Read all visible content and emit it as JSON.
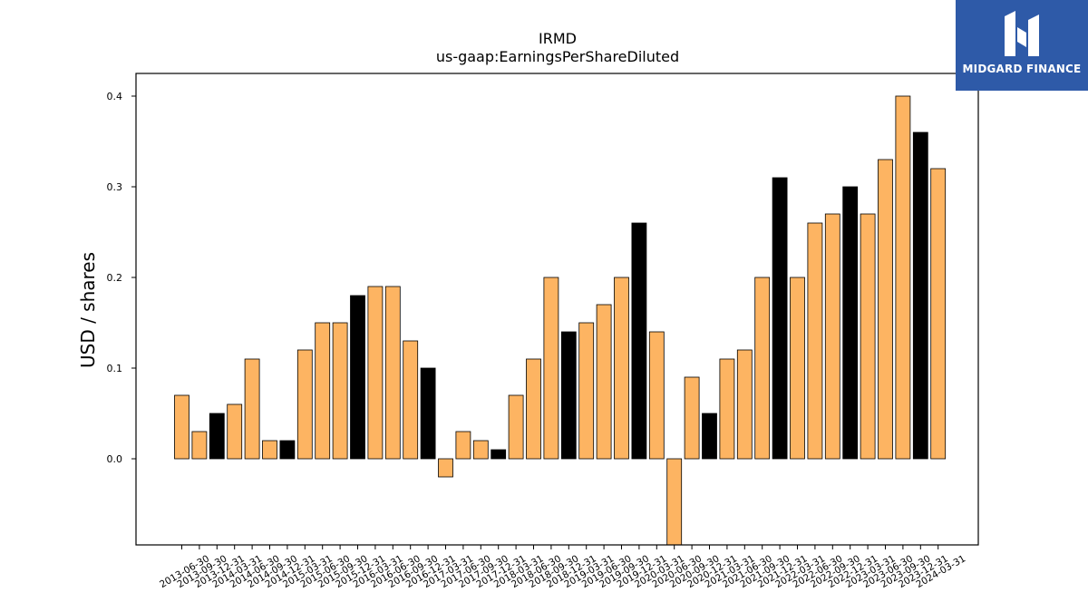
{
  "chart_data": {
    "type": "bar",
    "title": "IRMD",
    "subtitle": "us-gaap:EarningsPerShareDiluted",
    "ylabel": "USD / shares",
    "xlabel": "",
    "ylim": [
      -0.095,
      0.425
    ],
    "yticks": [
      0.0,
      0.1,
      0.2,
      0.3,
      0.4
    ],
    "ytick_labels": [
      "0.0",
      "0.1",
      "0.2",
      "0.3",
      "0.4"
    ],
    "grid": false,
    "categories": [
      "2013-06-30",
      "2013-09-30",
      "2013-12-31",
      "2014-03-31",
      "2014-06-30",
      "2014-09-30",
      "2014-12-31",
      "2015-03-31",
      "2015-06-30",
      "2015-09-30",
      "2015-12-31",
      "2016-03-31",
      "2016-06-30",
      "2016-09-30",
      "2016-12-31",
      "2017-03-31",
      "2017-06-30",
      "2017-09-30",
      "2017-12-31",
      "2018-03-31",
      "2018-06-30",
      "2018-09-30",
      "2018-12-31",
      "2019-03-31",
      "2019-06-30",
      "2019-09-30",
      "2019-12-31",
      "2020-03-31",
      "2020-06-30",
      "2020-09-30",
      "2020-12-31",
      "2021-03-31",
      "2021-06-30",
      "2021-09-30",
      "2021-12-31",
      "2022-03-31",
      "2022-06-30",
      "2022-09-30",
      "2022-12-31",
      "2023-03-31",
      "2023-06-30",
      "2023-09-30",
      "2023-12-31",
      "2024-03-31"
    ],
    "values": [
      0.07,
      0.03,
      0.05,
      0.06,
      0.11,
      0.02,
      0.02,
      0.12,
      0.15,
      0.15,
      0.18,
      0.19,
      0.19,
      0.13,
      0.1,
      -0.02,
      0.03,
      0.02,
      0.01,
      0.07,
      0.11,
      0.2,
      0.14,
      0.15,
      0.17,
      0.2,
      0.26,
      0.14,
      -0.11,
      0.09,
      0.05,
      0.11,
      0.12,
      0.2,
      0.31,
      0.2,
      0.26,
      0.27,
      0.3,
      0.27,
      0.33,
      0.4,
      0.36,
      0.32
    ],
    "colors": {
      "quarter": "#fdb462",
      "year_end": "#000000",
      "edge": "#000000"
    }
  },
  "logo": {
    "text": "MIDGARD FINANCE",
    "background": "#2e5aa8"
  }
}
